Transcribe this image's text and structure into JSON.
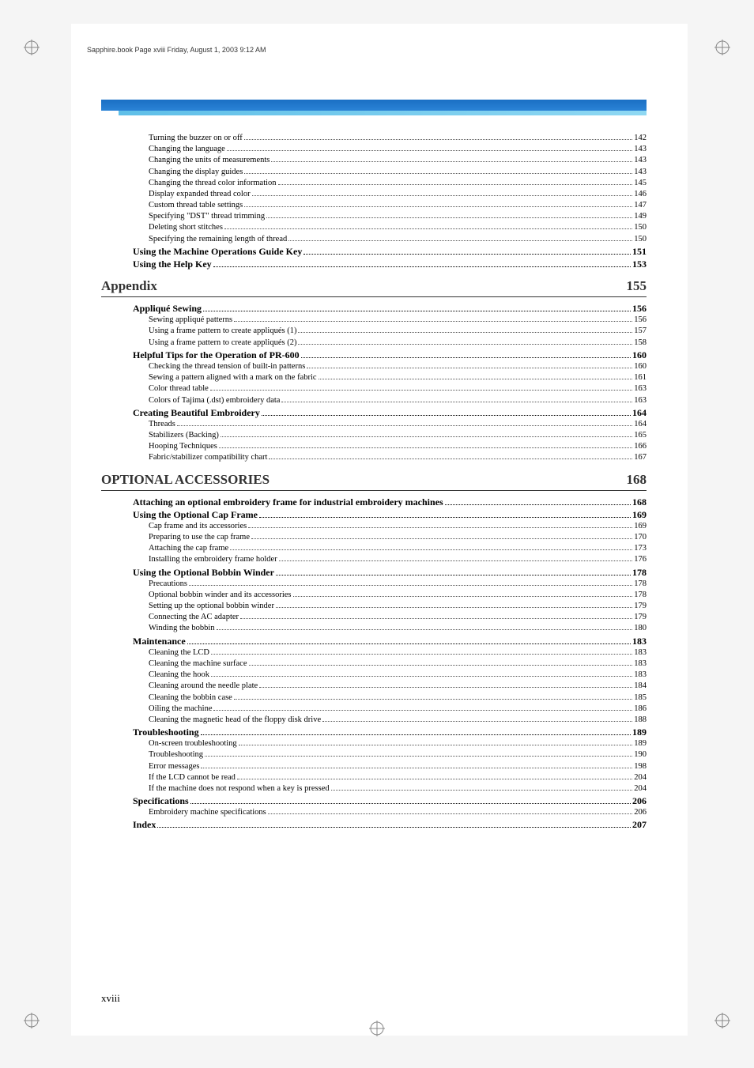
{
  "header": "Sapphire.book  Page xviii  Friday, August 1, 2003  9:12 AM",
  "page_number": "xviii",
  "colors": {
    "blue_bar": "#1a6fc4",
    "cyan_bar": "#5fbfe8",
    "text": "#000000",
    "background": "#ffffff"
  },
  "toc": [
    {
      "type": "sub",
      "label": "Turning the buzzer on or off",
      "page": "142"
    },
    {
      "type": "sub",
      "label": "Changing the language",
      "page": "143"
    },
    {
      "type": "sub",
      "label": "Changing the units of measurements",
      "page": "143"
    },
    {
      "type": "sub",
      "label": "Changing the display guides",
      "page": "143"
    },
    {
      "type": "sub",
      "label": "Changing the thread color information",
      "page": "145"
    },
    {
      "type": "sub",
      "label": "Display expanded thread color",
      "page": "146"
    },
    {
      "type": "sub",
      "label": "Custom thread table settings",
      "page": "147"
    },
    {
      "type": "sub",
      "label": "Specifying \"DST\" thread trimming",
      "page": "149"
    },
    {
      "type": "sub",
      "label": "Deleting short stitches",
      "page": "150"
    },
    {
      "type": "sub",
      "label": "Specifying the remaining length of thread",
      "page": "150"
    },
    {
      "type": "bold",
      "label": "Using the Machine Operations Guide Key",
      "page": "151"
    },
    {
      "type": "bold",
      "label": "Using the Help Key",
      "page": "153"
    },
    {
      "type": "section",
      "label": "Appendix",
      "page": "155"
    },
    {
      "type": "bold",
      "label": "Appliqué Sewing",
      "page": "156"
    },
    {
      "type": "sub",
      "label": "Sewing appliqué patterns",
      "page": "156"
    },
    {
      "type": "sub",
      "label": "Using a frame pattern to create appliqués (1)",
      "page": "157"
    },
    {
      "type": "sub",
      "label": "Using a frame pattern to create appliqués (2)",
      "page": "158"
    },
    {
      "type": "bold",
      "label": "Helpful Tips for the Operation of PR-600",
      "page": "160"
    },
    {
      "type": "sub",
      "label": "Checking the thread tension of built-in patterns",
      "page": "160"
    },
    {
      "type": "sub",
      "label": "Sewing a pattern aligned with a mark on the fabric",
      "page": "161"
    },
    {
      "type": "sub",
      "label": "Color thread table",
      "page": "163"
    },
    {
      "type": "sub",
      "label": "Colors of Tajima (.dst) embroidery data",
      "page": "163"
    },
    {
      "type": "bold",
      "label": "Creating Beautiful Embroidery",
      "page": "164"
    },
    {
      "type": "sub",
      "label": "Threads",
      "page": "164"
    },
    {
      "type": "sub",
      "label": "Stabilizers (Backing)",
      "page": "165"
    },
    {
      "type": "sub",
      "label": "Hooping Techniques",
      "page": "166"
    },
    {
      "type": "sub",
      "label": "Fabric/stabilizer compatibility chart",
      "page": "167"
    },
    {
      "type": "section",
      "label": "OPTIONAL ACCESSORIES",
      "page": "168"
    },
    {
      "type": "bold",
      "label": "Attaching an optional embroidery frame for industrial embroidery machines",
      "page": "168"
    },
    {
      "type": "bold",
      "label": "Using the Optional Cap Frame",
      "page": "169"
    },
    {
      "type": "sub",
      "label": "Cap frame and its accessories",
      "page": "169"
    },
    {
      "type": "sub",
      "label": "Preparing to use the cap frame",
      "page": "170"
    },
    {
      "type": "sub",
      "label": "Attaching the cap frame",
      "page": "173"
    },
    {
      "type": "sub",
      "label": "Installing the embroidery frame holder",
      "page": "176"
    },
    {
      "type": "bold",
      "label": "Using the Optional Bobbin Winder",
      "page": "178"
    },
    {
      "type": "sub",
      "label": "Precautions",
      "page": "178"
    },
    {
      "type": "sub",
      "label": "Optional bobbin winder and its accessories",
      "page": "178"
    },
    {
      "type": "sub",
      "label": "Setting up the optional bobbin winder",
      "page": "179"
    },
    {
      "type": "sub",
      "label": "Connecting the AC adapter",
      "page": "179"
    },
    {
      "type": "sub",
      "label": "Winding the bobbin",
      "page": "180"
    },
    {
      "type": "bold",
      "label": "Maintenance",
      "page": "183"
    },
    {
      "type": "sub",
      "label": "Cleaning the LCD",
      "page": "183"
    },
    {
      "type": "sub",
      "label": "Cleaning the machine surface",
      "page": "183"
    },
    {
      "type": "sub",
      "label": "Cleaning the hook",
      "page": "183"
    },
    {
      "type": "sub",
      "label": "Cleaning around the needle plate",
      "page": "184"
    },
    {
      "type": "sub",
      "label": "Cleaning the bobbin case",
      "page": "185"
    },
    {
      "type": "sub",
      "label": "Oiling the machine",
      "page": "186"
    },
    {
      "type": "sub",
      "label": "Cleaning the magnetic head of the floppy disk drive",
      "page": "188"
    },
    {
      "type": "bold",
      "label": "Troubleshooting",
      "page": "189"
    },
    {
      "type": "sub",
      "label": "On-screen troubleshooting",
      "page": "189"
    },
    {
      "type": "sub",
      "label": "Troubleshooting",
      "page": "190"
    },
    {
      "type": "sub",
      "label": "Error messages",
      "page": "198"
    },
    {
      "type": "sub",
      "label": "If the LCD cannot be read",
      "page": "204"
    },
    {
      "type": "sub",
      "label": "If the machine does not respond when a key is pressed",
      "page": "204"
    },
    {
      "type": "bold",
      "label": "Specifications",
      "page": "206"
    },
    {
      "type": "sub",
      "label": "Embroidery machine specifications",
      "page": "206"
    },
    {
      "type": "bold",
      "label": "Index",
      "page": "207"
    }
  ]
}
